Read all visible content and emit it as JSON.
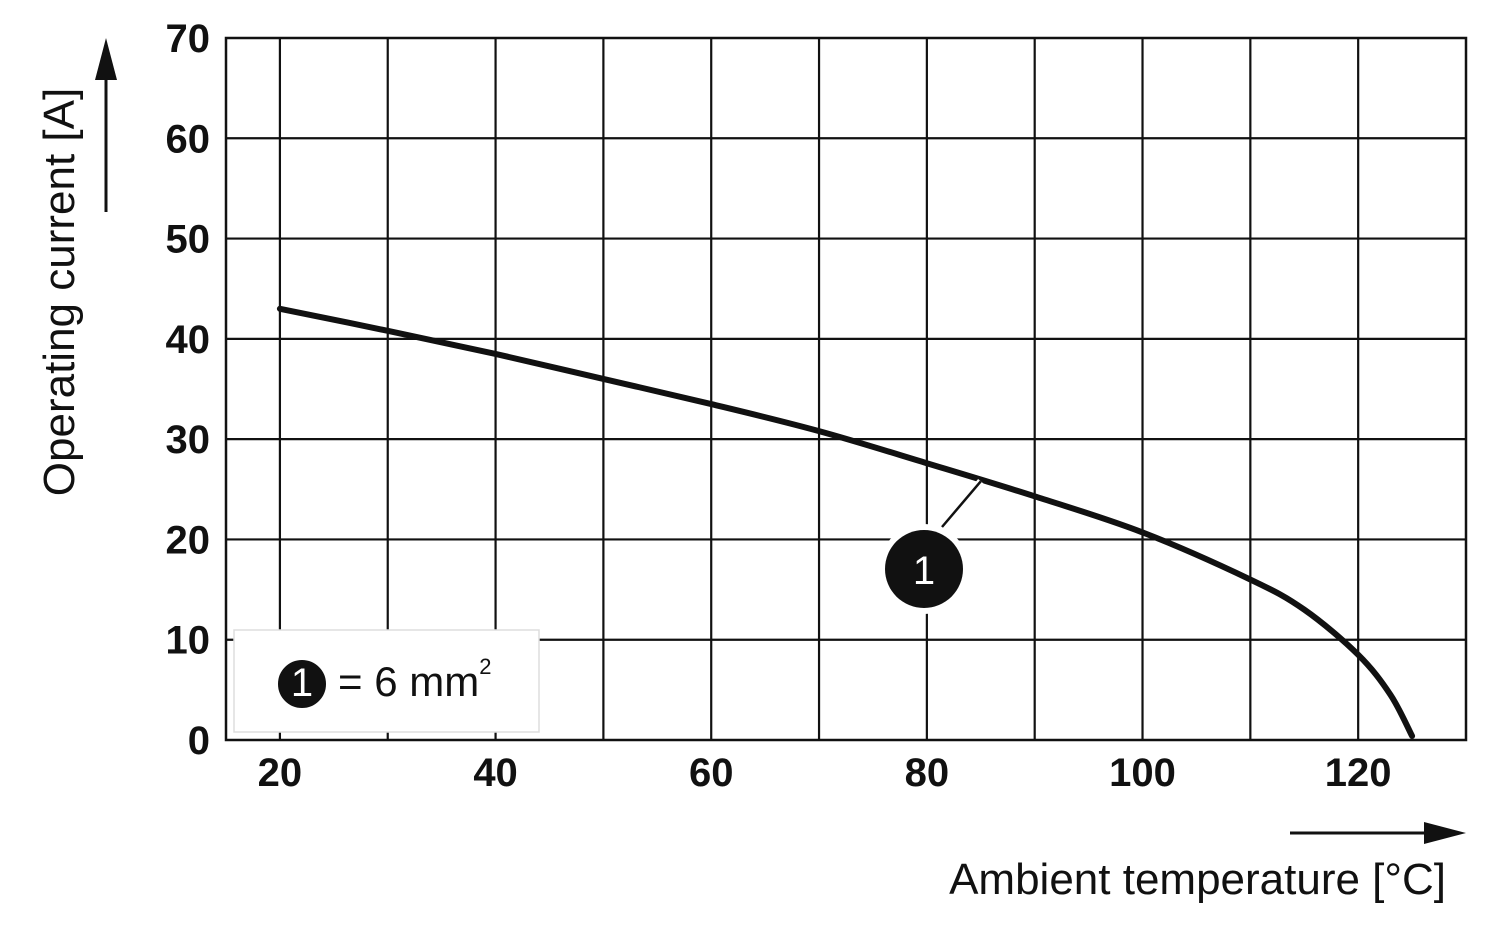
{
  "chart_data": {
    "type": "line",
    "xlabel": "Ambient temperature [°C]",
    "ylabel": "Operating current [A]",
    "xlim": [
      15,
      130
    ],
    "ylim": [
      0,
      70
    ],
    "x_ticks": [
      20,
      40,
      60,
      80,
      100,
      120
    ],
    "y_ticks": [
      0,
      10,
      20,
      30,
      40,
      50,
      60,
      70
    ],
    "x_grid_step": 10,
    "y_grid_step": 10,
    "grid": true,
    "legend_position": "bottom-left",
    "series": [
      {
        "marker": "1",
        "x": [
          20,
          30,
          40,
          50,
          60,
          70,
          80,
          90,
          100,
          110,
          115,
          120,
          123,
          125
        ],
        "y": [
          43.0,
          40.8,
          38.5,
          36.0,
          33.5,
          30.8,
          27.6,
          24.3,
          20.7,
          16.0,
          13.0,
          8.5,
          4.5,
          0.4
        ]
      }
    ],
    "annotations": [
      {
        "marker": "1",
        "x": 85,
        "y": 26
      }
    ],
    "legend": {
      "marker": "1",
      "text": "= 6 mm",
      "superscript": "2"
    }
  }
}
